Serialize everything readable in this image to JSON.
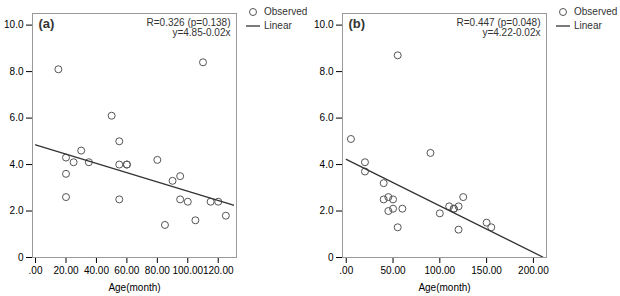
{
  "chart_data": [
    {
      "type": "scatter",
      "title": "(a)",
      "annotations": [
        "R=0.326 (p=0.138)",
        "y=4.85-0.02x"
      ],
      "xlabel": "Age(month)",
      "series": [
        {
          "name": "Observed",
          "type": "scatter",
          "color": "#555555",
          "marker": "circle",
          "x": [
            15,
            20,
            20,
            20,
            25,
            30,
            35,
            50,
            55,
            55,
            55,
            60,
            60,
            80,
            85,
            90,
            95,
            95,
            100,
            105,
            110,
            115,
            120,
            125
          ],
          "values": [
            8.1,
            4.3,
            3.6,
            2.6,
            4.1,
            4.6,
            4.1,
            6.1,
            5.0,
            4.0,
            2.5,
            4.0,
            4.0,
            4.2,
            1.4,
            3.3,
            3.5,
            2.5,
            2.4,
            1.6,
            8.4,
            2.4,
            2.4,
            1.8
          ]
        },
        {
          "name": "Linear",
          "type": "line",
          "color": "#333333",
          "line_style": "solid",
          "x": [
            0,
            130
          ],
          "values": [
            4.85,
            2.25
          ]
        }
      ],
      "xlim": [
        -2,
        132
      ],
      "xticks": [
        {
          "value": 0,
          "label": ".00"
        },
        {
          "value": 20,
          "label": "20.00"
        },
        {
          "value": 40,
          "label": "40.00"
        },
        {
          "value": 60,
          "label": "60.00"
        },
        {
          "value": 80,
          "label": "80.00"
        },
        {
          "value": 100,
          "label": "100.00"
        },
        {
          "value": 120,
          "label": "120.00"
        }
      ],
      "ylim": [
        0,
        10.5
      ],
      "yticks": [
        0,
        {
          "value": 2,
          "label": "2.0"
        },
        {
          "value": 4,
          "label": "4.0"
        },
        {
          "value": 6,
          "label": "6.0"
        },
        {
          "value": 8,
          "label": "8.0"
        },
        {
          "value": 10,
          "label": "10.0"
        }
      ],
      "grid": false,
      "legend": "upper right"
    },
    {
      "type": "scatter",
      "title": "(b)",
      "annotations": [
        "R=0.447 (p=0.048)",
        "y=4.22-0.02x"
      ],
      "xlabel": "Age(month)",
      "series": [
        {
          "name": "Observed",
          "type": "scatter",
          "color": "#555555",
          "marker": "circle",
          "x": [
            5,
            20,
            20,
            40,
            40,
            45,
            45,
            50,
            50,
            55,
            55,
            60,
            90,
            100,
            110,
            115,
            115,
            120,
            120,
            125,
            150,
            155
          ],
          "values": [
            5.1,
            4.1,
            3.7,
            3.2,
            2.5,
            2.6,
            2.0,
            2.5,
            2.1,
            8.7,
            1.3,
            2.1,
            4.5,
            1.9,
            2.2,
            2.1,
            2.1,
            2.2,
            1.2,
            2.6,
            1.5,
            1.3
          ]
        },
        {
          "name": "Linear",
          "type": "line",
          "color": "#333333",
          "line_style": "solid",
          "x": [
            0,
            210
          ],
          "values": [
            4.22,
            0.02
          ]
        }
      ],
      "xlim": [
        -4,
        214
      ],
      "xticks": [
        {
          "value": 0,
          "label": ".00"
        },
        {
          "value": 50,
          "label": "50.00"
        },
        {
          "value": 100,
          "label": "100.00"
        },
        {
          "value": 150,
          "label": "150.00"
        },
        {
          "value": 200,
          "label": "200.00"
        }
      ],
      "ylim": [
        0,
        10.5
      ],
      "yticks": [
        0,
        {
          "value": 2,
          "label": "2.0"
        },
        {
          "value": 4,
          "label": "4.0"
        },
        {
          "value": 6,
          "label": "6.0"
        },
        {
          "value": 8,
          "label": "8.0"
        },
        {
          "value": 10,
          "label": "10.0"
        }
      ],
      "grid": false,
      "legend": "upper right"
    }
  ]
}
